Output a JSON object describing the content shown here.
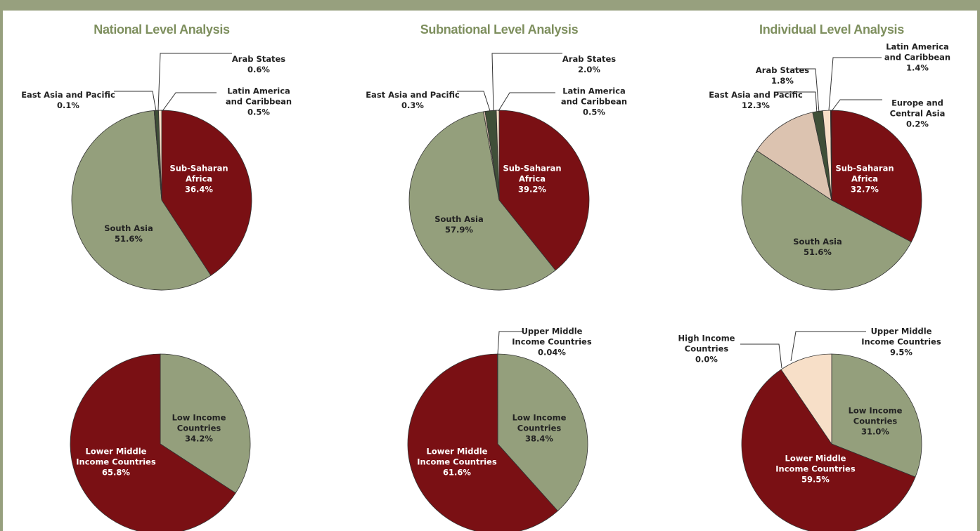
{
  "chart_data": [
    {
      "type": "pie",
      "title": "National Level Analysis",
      "categories": [
        "Sub-Saharan Africa",
        "South Asia",
        "East Asia and Pacific",
        "Arab States",
        "Latin America and Caribbean"
      ],
      "values": [
        36.4,
        51.6,
        0.1,
        0.6,
        0.5
      ],
      "value_labels": [
        "36.4%",
        "51.6%",
        "0.1%",
        "0.6%",
        "0.5%"
      ],
      "colors": [
        "#7a1014",
        "#949f7c",
        "#dcc3b0",
        "#3f4f38",
        "#f7dfc8"
      ]
    },
    {
      "type": "pie",
      "title": "Subnational Level Analysis",
      "categories": [
        "Sub-Saharan Africa",
        "South Asia",
        "East Asia and Pacific",
        "Arab States",
        "Latin America and Caribbean"
      ],
      "values": [
        39.2,
        57.9,
        0.3,
        2.0,
        0.5
      ],
      "value_labels": [
        "39.2%",
        "57.9%",
        "0.3%",
        "2.0%",
        "0.5%"
      ],
      "colors": [
        "#7a1014",
        "#949f7c",
        "#dcc3b0",
        "#3f4f38",
        "#f7dfc8"
      ]
    },
    {
      "type": "pie",
      "title": "Individual Level Analysis",
      "categories": [
        "Sub-Saharan Africa",
        "South Asia",
        "East Asia and Pacific",
        "Arab States",
        "Latin America and Caribbean",
        "Europe and Central Asia"
      ],
      "values": [
        32.7,
        51.6,
        12.3,
        1.8,
        1.4,
        0.2
      ],
      "value_labels": [
        "32.7%",
        "51.6%",
        "12.3%",
        "1.8%",
        "1.4%",
        "0.2%"
      ],
      "colors": [
        "#7a1014",
        "#949f7c",
        "#dcc3b0",
        "#3f4f38",
        "#f7dfc8",
        "#5a0a0d"
      ]
    },
    {
      "type": "pie",
      "categories": [
        "Low Income Countries",
        "Lower Middle Income Countries"
      ],
      "values": [
        34.2,
        65.8
      ],
      "value_labels": [
        "34.2%",
        "65.8%"
      ],
      "colors": [
        "#949f7c",
        "#7a1014"
      ]
    },
    {
      "type": "pie",
      "categories": [
        "Low Income Countries",
        "Lower Middle Income Countries",
        "Upper Middle Income Countries"
      ],
      "values": [
        38.4,
        61.6,
        0.04
      ],
      "value_labels": [
        "38.4%",
        "61.6%",
        "0.04%"
      ],
      "colors": [
        "#949f7c",
        "#7a1014",
        "#f7dfc8"
      ]
    },
    {
      "type": "pie",
      "categories": [
        "Low Income Countries",
        "Lower Middle Income Countries",
        "Upper Middle Income Countries",
        "High Income Countries"
      ],
      "values": [
        31.0,
        59.5,
        9.5,
        0.0
      ],
      "value_labels": [
        "31.0%",
        "59.5%",
        "9.5%",
        "0.0%"
      ],
      "colors": [
        "#949f7c",
        "#7a1014",
        "#f7dfc8",
        "#3f4f38"
      ]
    }
  ]
}
